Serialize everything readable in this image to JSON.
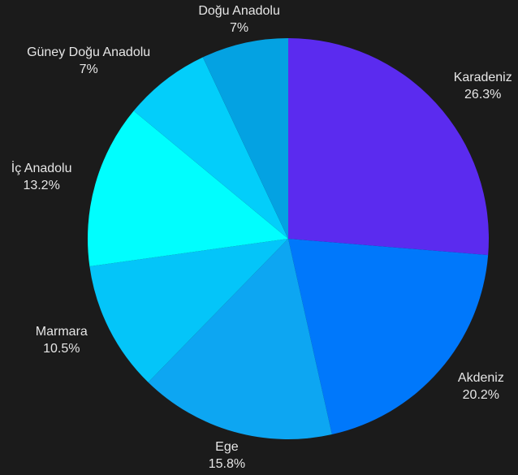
{
  "chart_data": {
    "type": "pie",
    "labels": [
      "Karadeniz",
      "Akdeniz",
      "Ege",
      "Marmara",
      "İç Anadolu",
      "Güney Doğu Anadolu",
      "Doğu Anadolu"
    ],
    "values": [
      26.3,
      20.2,
      15.8,
      10.5,
      13.2,
      7,
      7
    ],
    "value_labels": [
      "26.3%",
      "20.2%",
      "15.8%",
      "10.5%",
      "13.2%",
      "7%",
      "7%"
    ],
    "colors": [
      "#5b2bef",
      "#0078fb",
      "#0da6f2",
      "#04c5f9",
      "#00fefe",
      "#03cefa",
      "#04a2e2"
    ]
  },
  "theme": {
    "background": "#1b1b1b",
    "text_color": "#e6e6e6"
  }
}
